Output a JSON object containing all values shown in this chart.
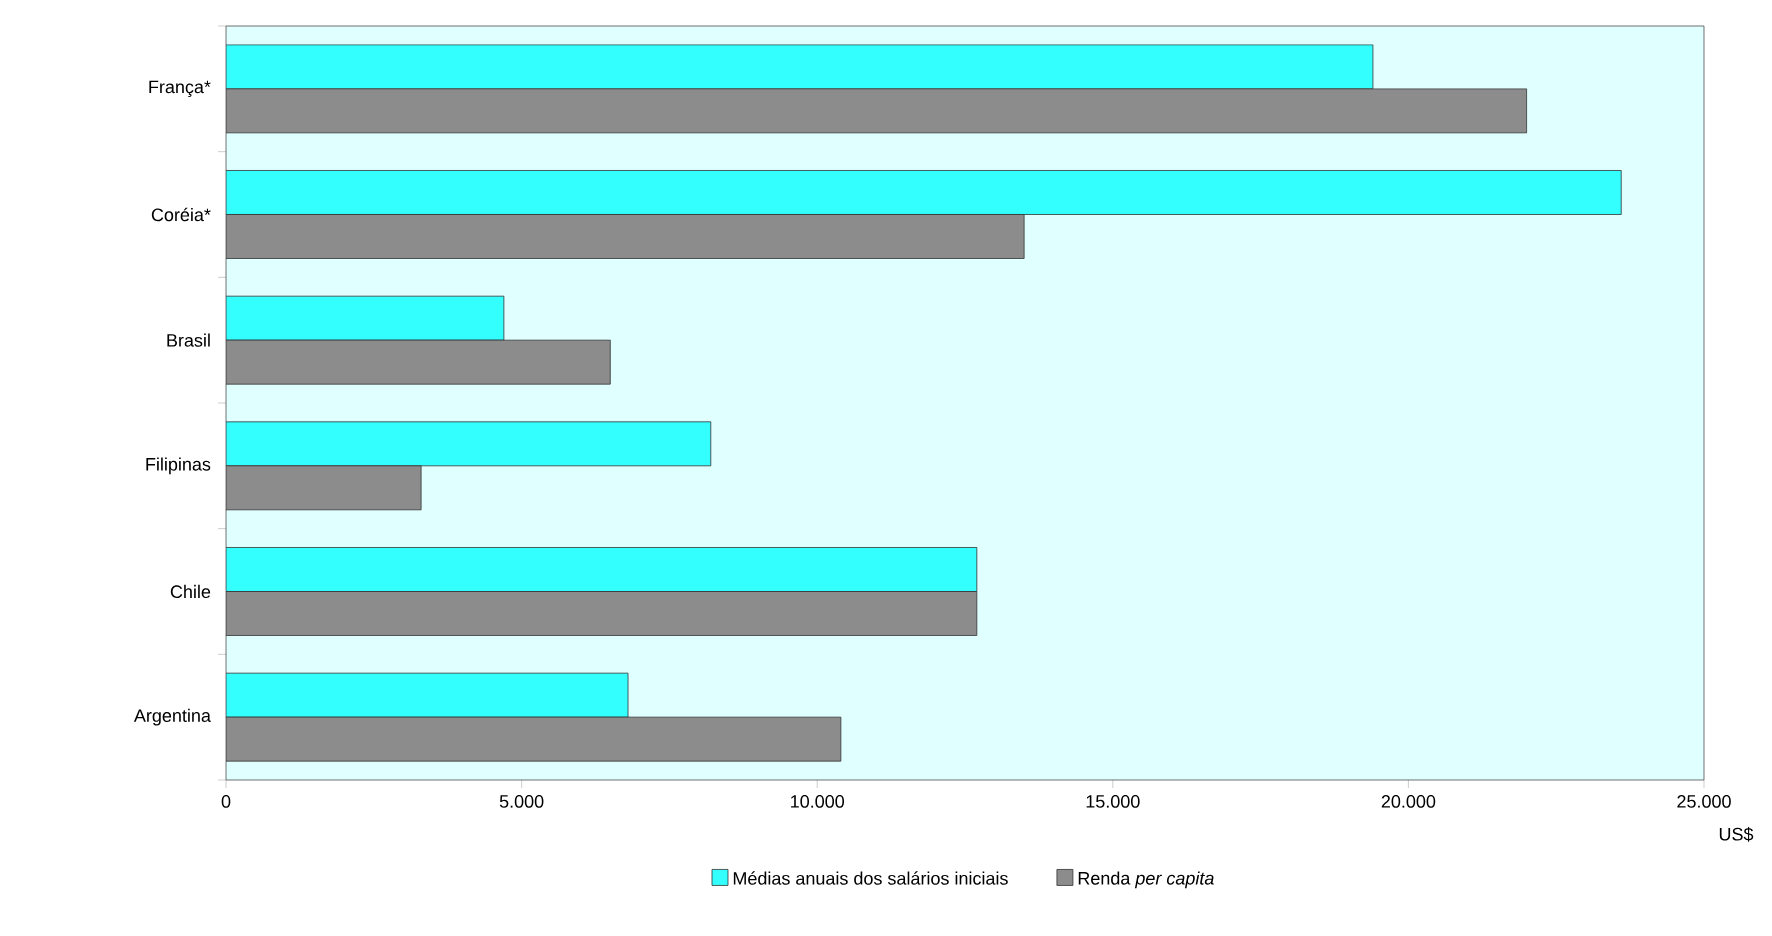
{
  "chart_data": {
    "type": "bar",
    "orientation": "horizontal",
    "xlabel": "US$",
    "categories": [
      "França*",
      "Coréia*",
      "Brasil",
      "Filipinas",
      "Chile",
      "Argentina"
    ],
    "series": [
      {
        "name": "Médias anuais dos salários iniciais",
        "color": "#33ffff",
        "values": [
          19400,
          23600,
          4700,
          8200,
          12700,
          6800
        ]
      },
      {
        "name": "Renda *per capita*",
        "color": "#8c8c8c",
        "values": [
          22000,
          13500,
          6500,
          3300,
          12700,
          10400
        ]
      }
    ],
    "xlim": [
      0,
      25000
    ],
    "xticks": [
      0,
      {
        "value": 5000,
        "label": "5.000"
      },
      {
        "value": 10000,
        "label": "10.000"
      },
      {
        "value": 15000,
        "label": "15.000"
      },
      {
        "value": 20000,
        "label": "20.000"
      },
      {
        "value": 25000,
        "label": "25.000"
      }
    ],
    "legend": "bottom",
    "grid": false
  }
}
